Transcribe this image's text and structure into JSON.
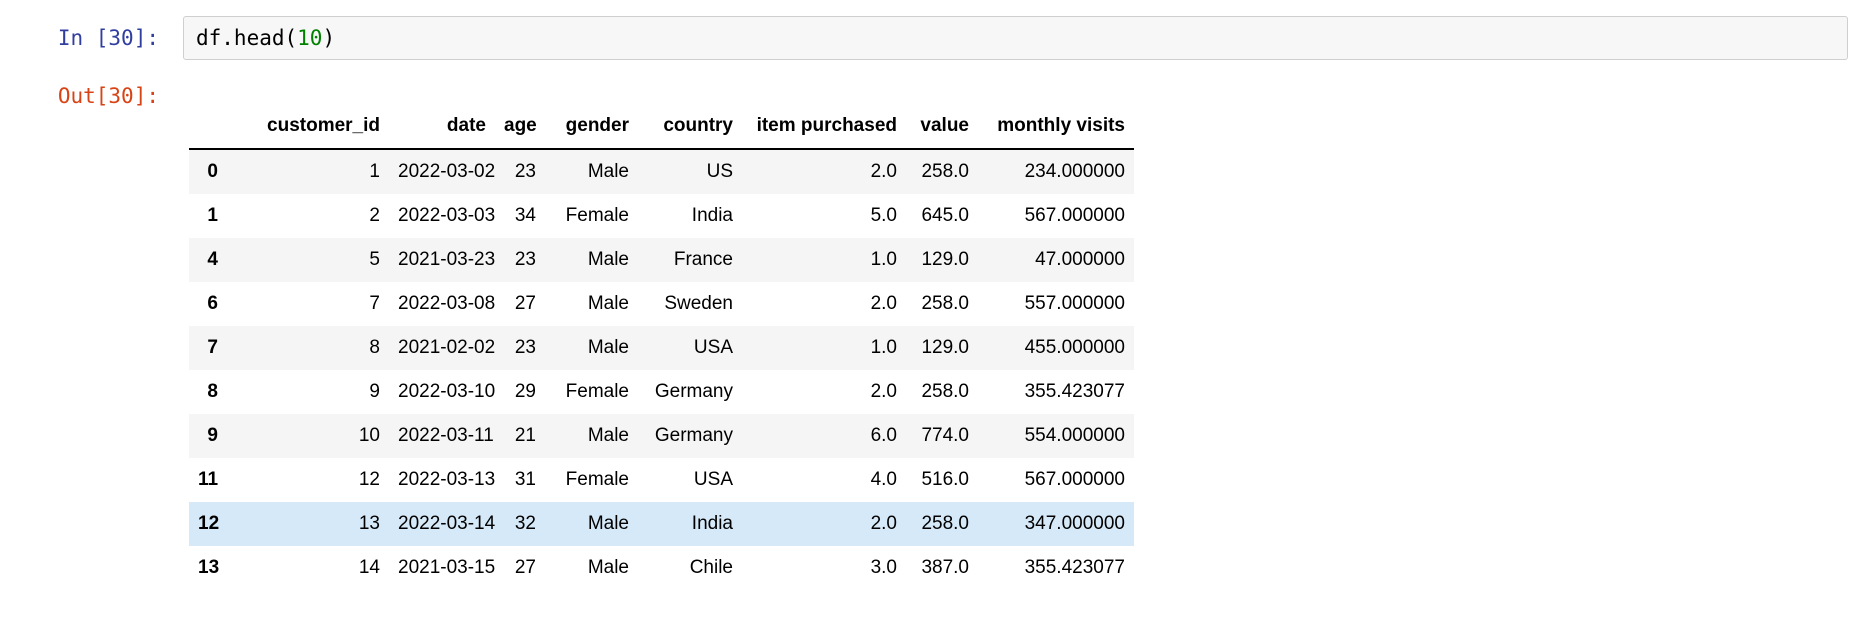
{
  "notebook": {
    "input_cell": {
      "prompt": "In [30]:",
      "code": {
        "prefix": "df.head(",
        "argument": "10",
        "suffix": ")"
      }
    },
    "output_cell": {
      "prompt": "Out[30]:",
      "table": {
        "columns": [
          "customer_id",
          "date",
          "age",
          "gender",
          "country",
          "item purchased",
          "value",
          "monthly visits"
        ],
        "rows": [
          {
            "index": "0",
            "cells": [
              "1",
              "2022-03-02",
              "23",
              "Male",
              "US",
              "2.0",
              "258.0",
              "234.000000"
            ],
            "highlighted": false
          },
          {
            "index": "1",
            "cells": [
              "2",
              "2022-03-03",
              "34",
              "Female",
              "India",
              "5.0",
              "645.0",
              "567.000000"
            ],
            "highlighted": false
          },
          {
            "index": "4",
            "cells": [
              "5",
              "2021-03-23",
              "23",
              "Male",
              "France",
              "1.0",
              "129.0",
              "47.000000"
            ],
            "highlighted": false
          },
          {
            "index": "6",
            "cells": [
              "7",
              "2022-03-08",
              "27",
              "Male",
              "Sweden",
              "2.0",
              "258.0",
              "557.000000"
            ],
            "highlighted": false
          },
          {
            "index": "7",
            "cells": [
              "8",
              "2021-02-02",
              "23",
              "Male",
              "USA",
              "1.0",
              "129.0",
              "455.000000"
            ],
            "highlighted": false
          },
          {
            "index": "8",
            "cells": [
              "9",
              "2022-03-10",
              "29",
              "Female",
              "Germany",
              "2.0",
              "258.0",
              "355.423077"
            ],
            "highlighted": false
          },
          {
            "index": "9",
            "cells": [
              "10",
              "2022-03-11",
              "21",
              "Male",
              "Germany",
              "6.0",
              "774.0",
              "554.000000"
            ],
            "highlighted": false
          },
          {
            "index": "11",
            "cells": [
              "12",
              "2022-03-13",
              "31",
              "Female",
              "USA",
              "4.0",
              "516.0",
              "567.000000"
            ],
            "highlighted": false
          },
          {
            "index": "12",
            "cells": [
              "13",
              "2022-03-14",
              "32",
              "Male",
              "India",
              "2.0",
              "258.0",
              "347.000000"
            ],
            "highlighted": true
          },
          {
            "index": "13",
            "cells": [
              "14",
              "2021-03-15",
              "27",
              "Male",
              "Chile",
              "3.0",
              "387.0",
              "355.423077"
            ],
            "highlighted": false
          }
        ]
      }
    }
  },
  "colors": {
    "in_prompt": "#303F9F",
    "out_prompt": "#D84315",
    "code_number": "#008000",
    "input_bg": "#F7F7F7",
    "input_border": "#CFCFCF",
    "row_stripe": "#F5F5F5",
    "row_highlight": "#D6E9F8",
    "header_border": "#000000"
  }
}
